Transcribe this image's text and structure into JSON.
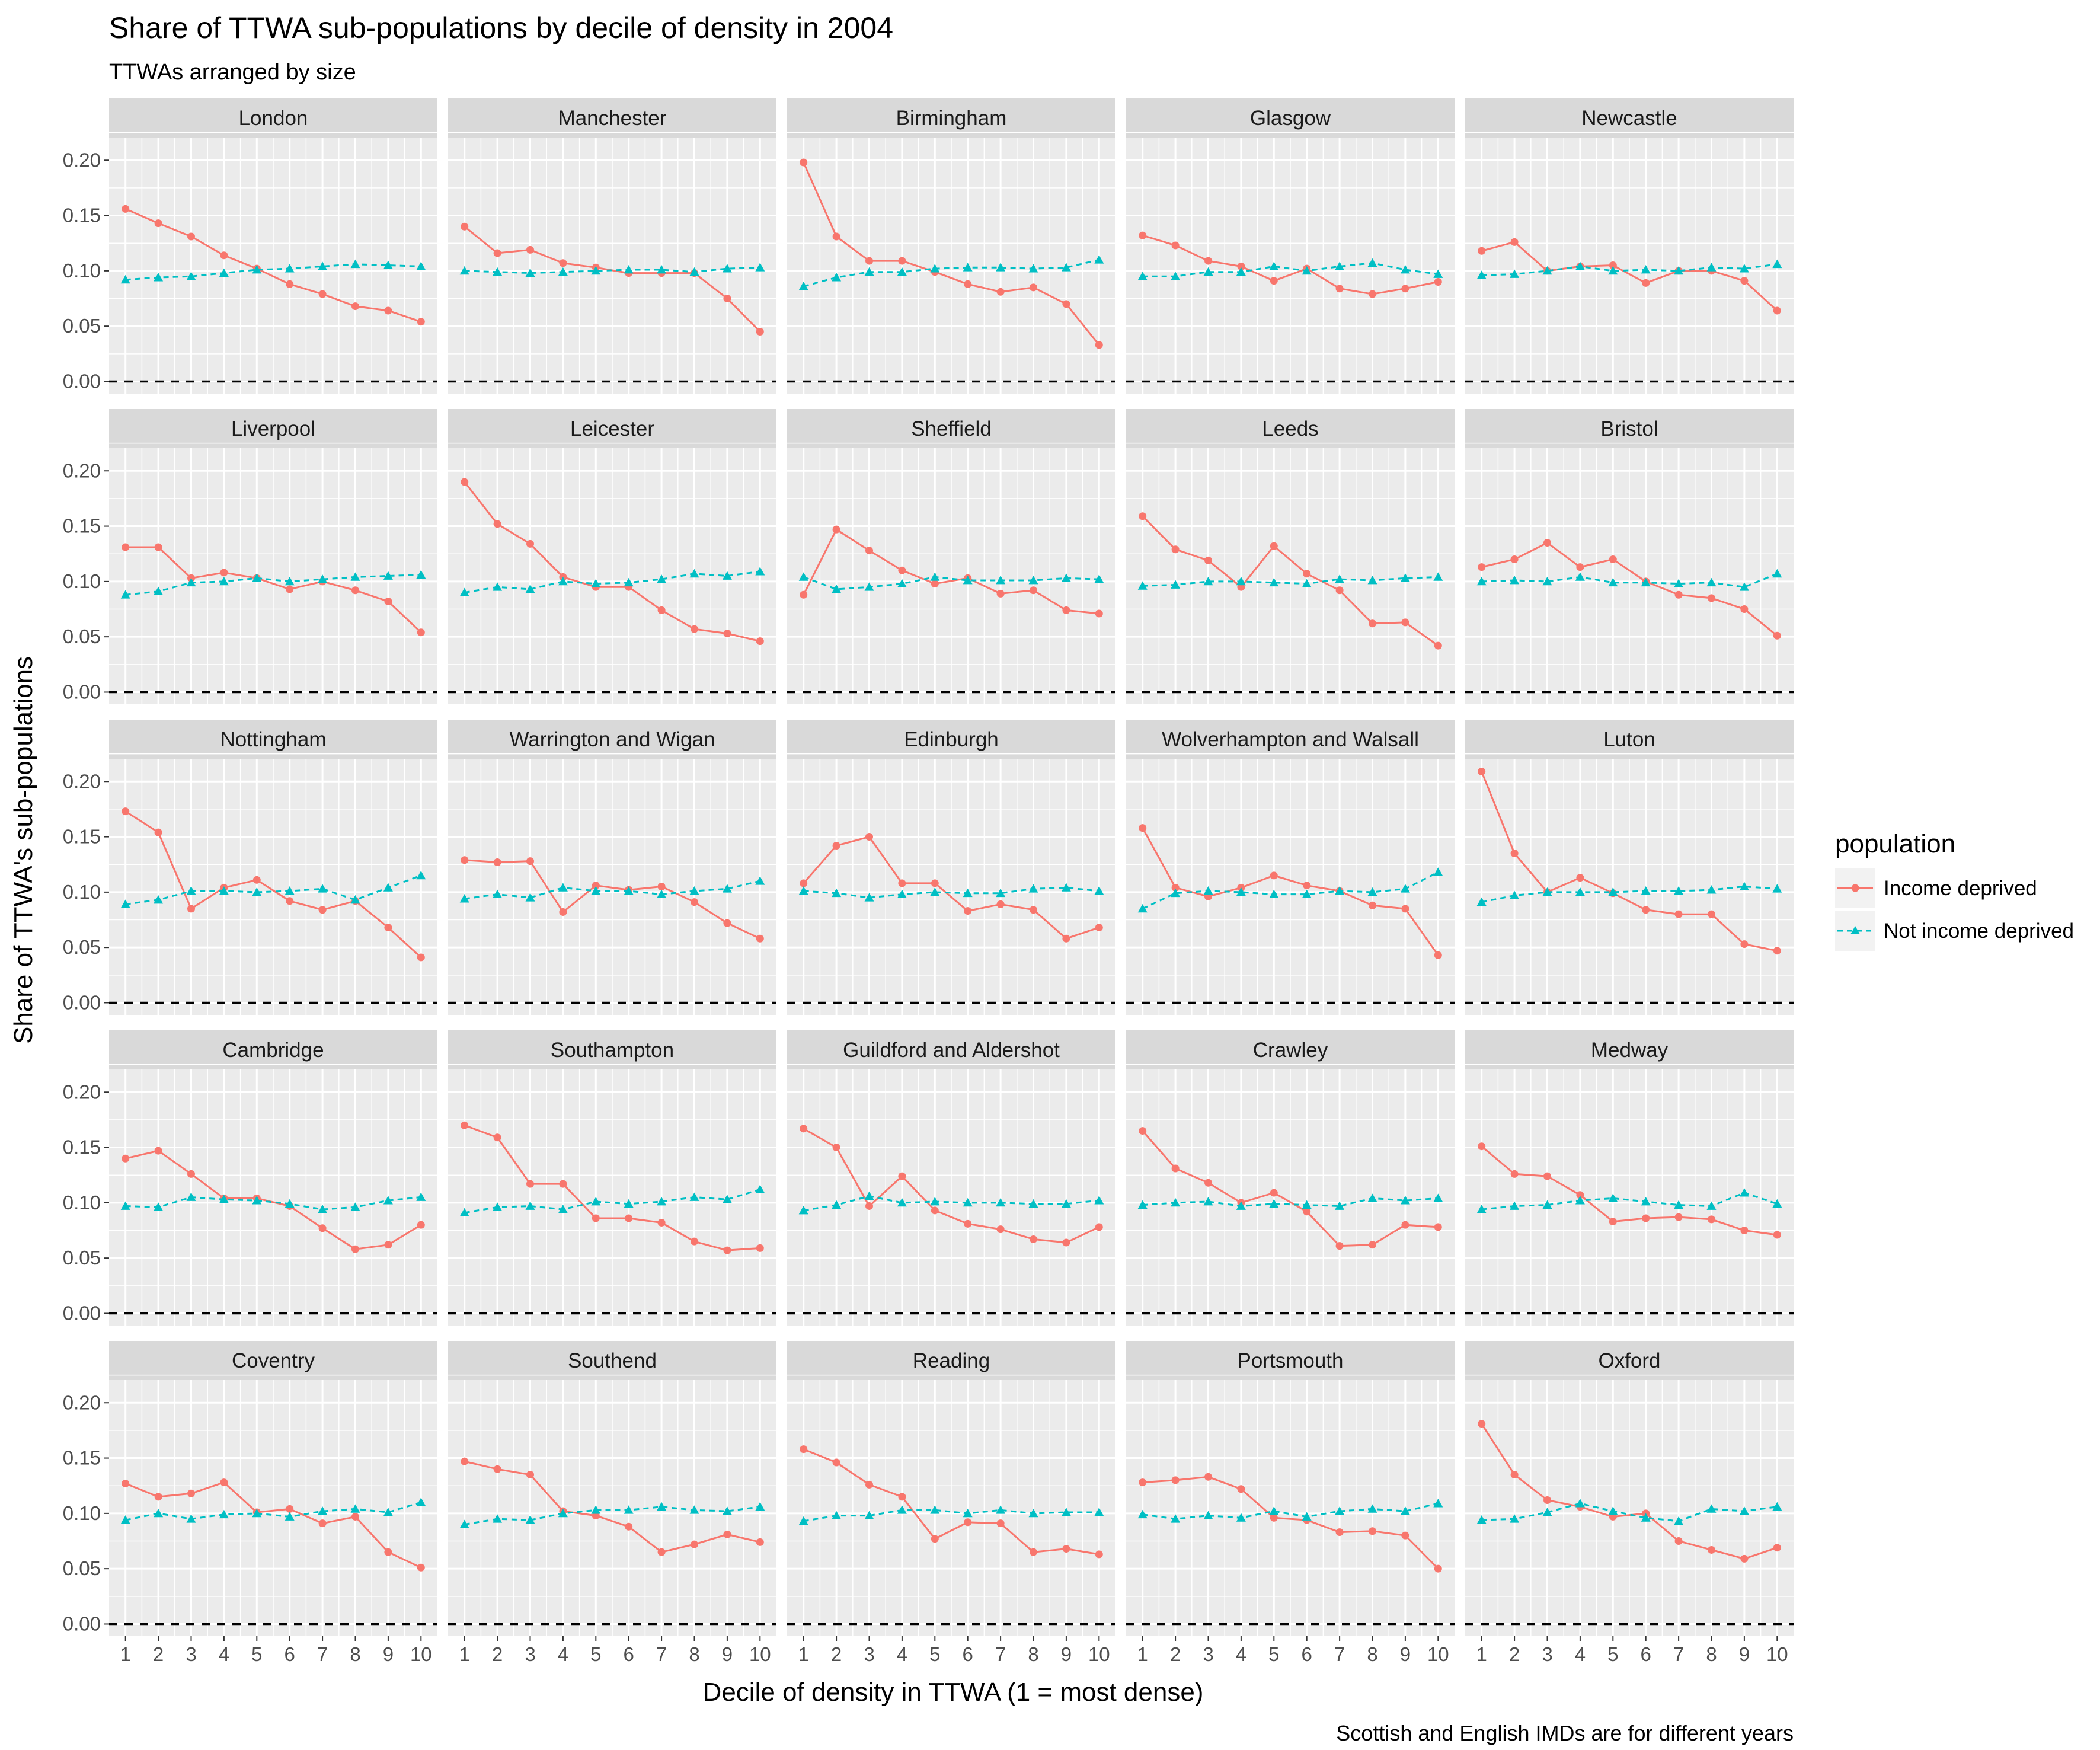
{
  "chart_data": {
    "type": "line",
    "title": "Share of TTWA sub-populations by decile of density in 2004",
    "subtitle": "TTWAs arranged by size",
    "xlabel": "Decile of density in TTWA (1 = most dense)",
    "ylabel": "Share of TTWA's sub-populations",
    "caption": "Scottish and English IMDs are for different years",
    "x": [
      1,
      2,
      3,
      4,
      5,
      6,
      7,
      8,
      9,
      10
    ],
    "x_tick_labels": [
      "1",
      "2",
      "3",
      "4",
      "5",
      "6",
      "7",
      "8",
      "9",
      "10"
    ],
    "ylim": [
      0,
      0.22
    ],
    "y_ticks": [
      0,
      0.05,
      0.1,
      0.15,
      0.2
    ],
    "y_tick_labels": [
      "0.00",
      "0.05",
      "0.10",
      "0.15",
      "0.20"
    ],
    "reference_line": {
      "y": 0,
      "style": "dashed",
      "color": "#000000"
    },
    "grid": true,
    "facet_layout": {
      "rows": 5,
      "cols": 5
    },
    "legend": {
      "title": "population",
      "position": "right",
      "entries": [
        {
          "name": "Income deprived",
          "color": "#F8766D",
          "marker": "circle",
          "line": "solid"
        },
        {
          "name": "Not income deprived",
          "color": "#00BFC4",
          "marker": "triangle",
          "line": "dashed"
        }
      ]
    },
    "facets": [
      {
        "title": "London",
        "series": [
          {
            "name": "Income deprived",
            "values": [
              0.156,
              0.143,
              0.131,
              0.114,
              0.102,
              0.088,
              0.079,
              0.068,
              0.064,
              0.054
            ]
          },
          {
            "name": "Not income deprived",
            "values": [
              0.092,
              0.094,
              0.095,
              0.098,
              0.101,
              0.102,
              0.104,
              0.106,
              0.105,
              0.104
            ]
          }
        ]
      },
      {
        "title": "Manchester",
        "series": [
          {
            "name": "Income deprived",
            "values": [
              0.14,
              0.116,
              0.119,
              0.107,
              0.103,
              0.098,
              0.098,
              0.098,
              0.075,
              0.045
            ]
          },
          {
            "name": "Not income deprived",
            "values": [
              0.1,
              0.099,
              0.098,
              0.099,
              0.1,
              0.101,
              0.101,
              0.099,
              0.102,
              0.103
            ]
          }
        ]
      },
      {
        "title": "Birmingham",
        "series": [
          {
            "name": "Income deprived",
            "values": [
              0.198,
              0.131,
              0.109,
              0.109,
              0.099,
              0.088,
              0.081,
              0.085,
              0.07,
              0.033
            ]
          },
          {
            "name": "Not income deprived",
            "values": [
              0.086,
              0.094,
              0.099,
              0.099,
              0.102,
              0.103,
              0.103,
              0.102,
              0.103,
              0.11
            ]
          }
        ]
      },
      {
        "title": "Glasgow",
        "series": [
          {
            "name": "Income deprived",
            "values": [
              0.132,
              0.123,
              0.109,
              0.104,
              0.091,
              0.102,
              0.084,
              0.079,
              0.084,
              0.09
            ]
          },
          {
            "name": "Not income deprived",
            "values": [
              0.095,
              0.095,
              0.099,
              0.099,
              0.104,
              0.1,
              0.104,
              0.107,
              0.101,
              0.097
            ]
          }
        ]
      },
      {
        "title": "Newcastle",
        "series": [
          {
            "name": "Income deprived",
            "values": [
              0.118,
              0.126,
              0.1,
              0.104,
              0.105,
              0.089,
              0.1,
              0.1,
              0.091,
              0.064
            ]
          },
          {
            "name": "Not income deprived",
            "values": [
              0.096,
              0.097,
              0.1,
              0.104,
              0.1,
              0.101,
              0.1,
              0.103,
              0.102,
              0.106
            ]
          }
        ]
      },
      {
        "title": "Liverpool",
        "series": [
          {
            "name": "Income deprived",
            "values": [
              0.131,
              0.131,
              0.103,
              0.108,
              0.103,
              0.093,
              0.1,
              0.092,
              0.082,
              0.054
            ]
          },
          {
            "name": "Not income deprived",
            "values": [
              0.088,
              0.091,
              0.099,
              0.1,
              0.103,
              0.1,
              0.102,
              0.104,
              0.105,
              0.106
            ]
          }
        ]
      },
      {
        "title": "Leicester",
        "series": [
          {
            "name": "Income deprived",
            "values": [
              0.19,
              0.152,
              0.134,
              0.104,
              0.095,
              0.095,
              0.074,
              0.057,
              0.053,
              0.046
            ]
          },
          {
            "name": "Not income deprived",
            "values": [
              0.09,
              0.095,
              0.093,
              0.1,
              0.098,
              0.099,
              0.102,
              0.107,
              0.105,
              0.109
            ]
          }
        ]
      },
      {
        "title": "Sheffield",
        "series": [
          {
            "name": "Income deprived",
            "values": [
              0.088,
              0.147,
              0.128,
              0.11,
              0.098,
              0.103,
              0.089,
              0.092,
              0.074,
              0.071
            ]
          },
          {
            "name": "Not income deprived",
            "values": [
              0.104,
              0.093,
              0.095,
              0.098,
              0.104,
              0.101,
              0.101,
              0.101,
              0.103,
              0.102
            ]
          }
        ]
      },
      {
        "title": "Leeds",
        "series": [
          {
            "name": "Income deprived",
            "values": [
              0.159,
              0.129,
              0.119,
              0.095,
              0.132,
              0.107,
              0.092,
              0.062,
              0.063,
              0.042
            ]
          },
          {
            "name": "Not income deprived",
            "values": [
              0.096,
              0.097,
              0.1,
              0.1,
              0.099,
              0.098,
              0.102,
              0.101,
              0.103,
              0.104
            ]
          }
        ]
      },
      {
        "title": "Bristol",
        "series": [
          {
            "name": "Income deprived",
            "values": [
              0.113,
              0.12,
              0.135,
              0.113,
              0.12,
              0.1,
              0.088,
              0.085,
              0.075,
              0.051
            ]
          },
          {
            "name": "Not income deprived",
            "values": [
              0.1,
              0.101,
              0.1,
              0.104,
              0.099,
              0.099,
              0.098,
              0.099,
              0.095,
              0.107
            ]
          }
        ]
      },
      {
        "title": "Nottingham",
        "series": [
          {
            "name": "Income deprived",
            "values": [
              0.173,
              0.154,
              0.085,
              0.104,
              0.111,
              0.092,
              0.084,
              0.092,
              0.068,
              0.041
            ]
          },
          {
            "name": "Not income deprived",
            "values": [
              0.089,
              0.093,
              0.101,
              0.101,
              0.1,
              0.101,
              0.103,
              0.093,
              0.104,
              0.115
            ]
          }
        ]
      },
      {
        "title": "Warrington and Wigan",
        "series": [
          {
            "name": "Income deprived",
            "values": [
              0.129,
              0.127,
              0.128,
              0.082,
              0.106,
              0.102,
              0.105,
              0.091,
              0.072,
              0.058
            ]
          },
          {
            "name": "Not income deprived",
            "values": [
              0.094,
              0.098,
              0.095,
              0.104,
              0.101,
              0.101,
              0.098,
              0.101,
              0.103,
              0.11
            ]
          }
        ]
      },
      {
        "title": "Edinburgh",
        "series": [
          {
            "name": "Income deprived",
            "values": [
              0.108,
              0.142,
              0.15,
              0.108,
              0.108,
              0.083,
              0.089,
              0.084,
              0.058,
              0.068
            ]
          },
          {
            "name": "Not income deprived",
            "values": [
              0.101,
              0.099,
              0.095,
              0.098,
              0.1,
              0.099,
              0.099,
              0.103,
              0.104,
              0.101
            ]
          }
        ]
      },
      {
        "title": "Wolverhampton and Walsall",
        "series": [
          {
            "name": "Income deprived",
            "values": [
              0.158,
              0.104,
              0.096,
              0.104,
              0.115,
              0.106,
              0.101,
              0.088,
              0.085,
              0.043
            ]
          },
          {
            "name": "Not income deprived",
            "values": [
              0.085,
              0.099,
              0.101,
              0.1,
              0.098,
              0.098,
              0.101,
              0.1,
              0.103,
              0.118
            ]
          }
        ]
      },
      {
        "title": "Luton",
        "series": [
          {
            "name": "Income deprived",
            "values": [
              0.209,
              0.135,
              0.1,
              0.113,
              0.099,
              0.084,
              0.08,
              0.08,
              0.053,
              0.047
            ]
          },
          {
            "name": "Not income deprived",
            "values": [
              0.091,
              0.097,
              0.1,
              0.1,
              0.1,
              0.101,
              0.101,
              0.102,
              0.105,
              0.103
            ]
          }
        ]
      },
      {
        "title": "Cambridge",
        "series": [
          {
            "name": "Income deprived",
            "values": [
              0.14,
              0.147,
              0.126,
              0.104,
              0.104,
              0.097,
              0.077,
              0.058,
              0.062,
              0.08
            ]
          },
          {
            "name": "Not income deprived",
            "values": [
              0.097,
              0.096,
              0.105,
              0.103,
              0.102,
              0.099,
              0.094,
              0.096,
              0.102,
              0.105
            ]
          }
        ]
      },
      {
        "title": "Southampton",
        "series": [
          {
            "name": "Income deprived",
            "values": [
              0.17,
              0.159,
              0.117,
              0.117,
              0.086,
              0.086,
              0.082,
              0.065,
              0.057,
              0.059
            ]
          },
          {
            "name": "Not income deprived",
            "values": [
              0.091,
              0.096,
              0.097,
              0.094,
              0.101,
              0.099,
              0.101,
              0.105,
              0.103,
              0.112
            ]
          }
        ]
      },
      {
        "title": "Guildford and Aldershot",
        "series": [
          {
            "name": "Income deprived",
            "values": [
              0.167,
              0.15,
              0.097,
              0.124,
              0.093,
              0.081,
              0.076,
              0.067,
              0.064,
              0.078
            ]
          },
          {
            "name": "Not income deprived",
            "values": [
              0.093,
              0.098,
              0.106,
              0.1,
              0.101,
              0.1,
              0.1,
              0.099,
              0.099,
              0.102
            ]
          }
        ]
      },
      {
        "title": "Crawley",
        "series": [
          {
            "name": "Income deprived",
            "values": [
              0.165,
              0.131,
              0.118,
              0.1,
              0.109,
              0.092,
              0.061,
              0.062,
              0.08,
              0.078
            ]
          },
          {
            "name": "Not income deprived",
            "values": [
              0.098,
              0.1,
              0.101,
              0.097,
              0.099,
              0.098,
              0.097,
              0.104,
              0.102,
              0.104
            ]
          }
        ]
      },
      {
        "title": "Medway",
        "series": [
          {
            "name": "Income deprived",
            "values": [
              0.151,
              0.126,
              0.124,
              0.107,
              0.083,
              0.086,
              0.087,
              0.085,
              0.075,
              0.071
            ]
          },
          {
            "name": "Not income deprived",
            "values": [
              0.094,
              0.097,
              0.098,
              0.102,
              0.104,
              0.101,
              0.098,
              0.097,
              0.109,
              0.099
            ]
          }
        ]
      },
      {
        "title": "Coventry",
        "series": [
          {
            "name": "Income deprived",
            "values": [
              0.127,
              0.115,
              0.118,
              0.128,
              0.101,
              0.104,
              0.091,
              0.097,
              0.065,
              0.051
            ]
          },
          {
            "name": "Not income deprived",
            "values": [
              0.094,
              0.1,
              0.095,
              0.099,
              0.1,
              0.097,
              0.102,
              0.104,
              0.101,
              0.11
            ]
          }
        ]
      },
      {
        "title": "Southend",
        "series": [
          {
            "name": "Income deprived",
            "values": [
              0.147,
              0.14,
              0.135,
              0.102,
              0.098,
              0.088,
              0.065,
              0.072,
              0.081,
              0.074
            ]
          },
          {
            "name": "Not income deprived",
            "values": [
              0.09,
              0.095,
              0.094,
              0.1,
              0.103,
              0.103,
              0.106,
              0.103,
              0.102,
              0.106
            ]
          }
        ]
      },
      {
        "title": "Reading",
        "series": [
          {
            "name": "Income deprived",
            "values": [
              0.158,
              0.146,
              0.126,
              0.115,
              0.077,
              0.092,
              0.091,
              0.065,
              0.068,
              0.063
            ]
          },
          {
            "name": "Not income deprived",
            "values": [
              0.093,
              0.098,
              0.098,
              0.103,
              0.103,
              0.1,
              0.103,
              0.1,
              0.101,
              0.101
            ]
          }
        ]
      },
      {
        "title": "Portsmouth",
        "series": [
          {
            "name": "Income deprived",
            "values": [
              0.128,
              0.13,
              0.133,
              0.122,
              0.096,
              0.094,
              0.083,
              0.084,
              0.08,
              0.05
            ]
          },
          {
            "name": "Not income deprived",
            "values": [
              0.099,
              0.095,
              0.098,
              0.096,
              0.102,
              0.097,
              0.102,
              0.104,
              0.102,
              0.109
            ]
          }
        ]
      },
      {
        "title": "Oxford",
        "series": [
          {
            "name": "Income deprived",
            "values": [
              0.181,
              0.135,
              0.112,
              0.106,
              0.097,
              0.1,
              0.075,
              0.067,
              0.059,
              0.069
            ]
          },
          {
            "name": "Not income deprived",
            "values": [
              0.094,
              0.095,
              0.101,
              0.109,
              0.102,
              0.096,
              0.093,
              0.104,
              0.102,
              0.106
            ]
          }
        ]
      }
    ]
  }
}
